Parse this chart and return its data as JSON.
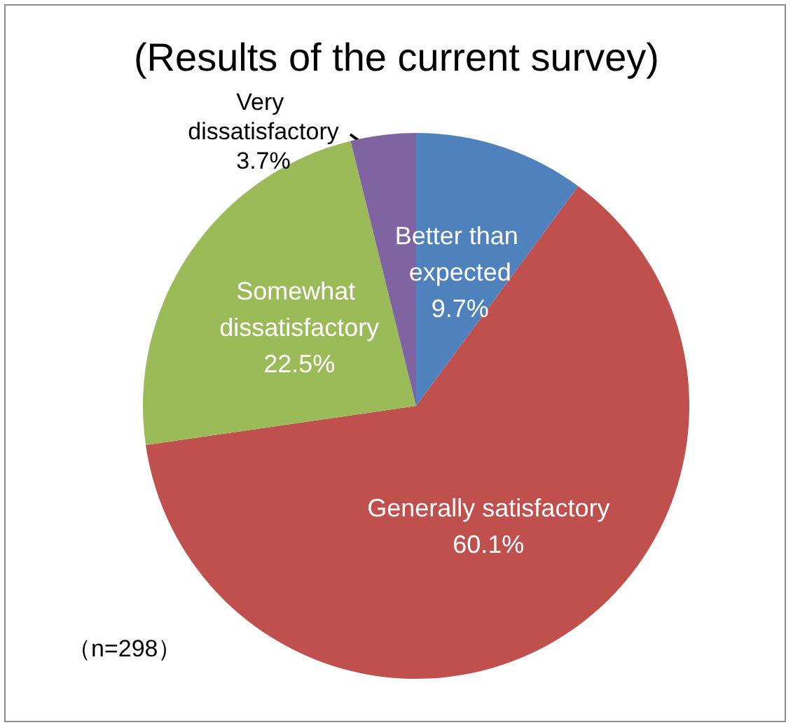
{
  "chart_data": {
    "type": "pie",
    "title": "(Results of the current survey)",
    "categories": [
      "Better than expected",
      "Generally satisfactory",
      "Somewhat dissatisfactory",
      "Very dissatisfactory"
    ],
    "values": [
      9.7,
      60.1,
      22.5,
      3.7
    ],
    "value_labels": [
      "9.7%",
      "60.1%",
      "22.5%",
      "3.7%"
    ],
    "colors": [
      "#4f81bd",
      "#c0504d",
      "#9bbb59",
      "#8064a2"
    ],
    "annotations": [
      "（n=298）"
    ],
    "legend": false
  }
}
